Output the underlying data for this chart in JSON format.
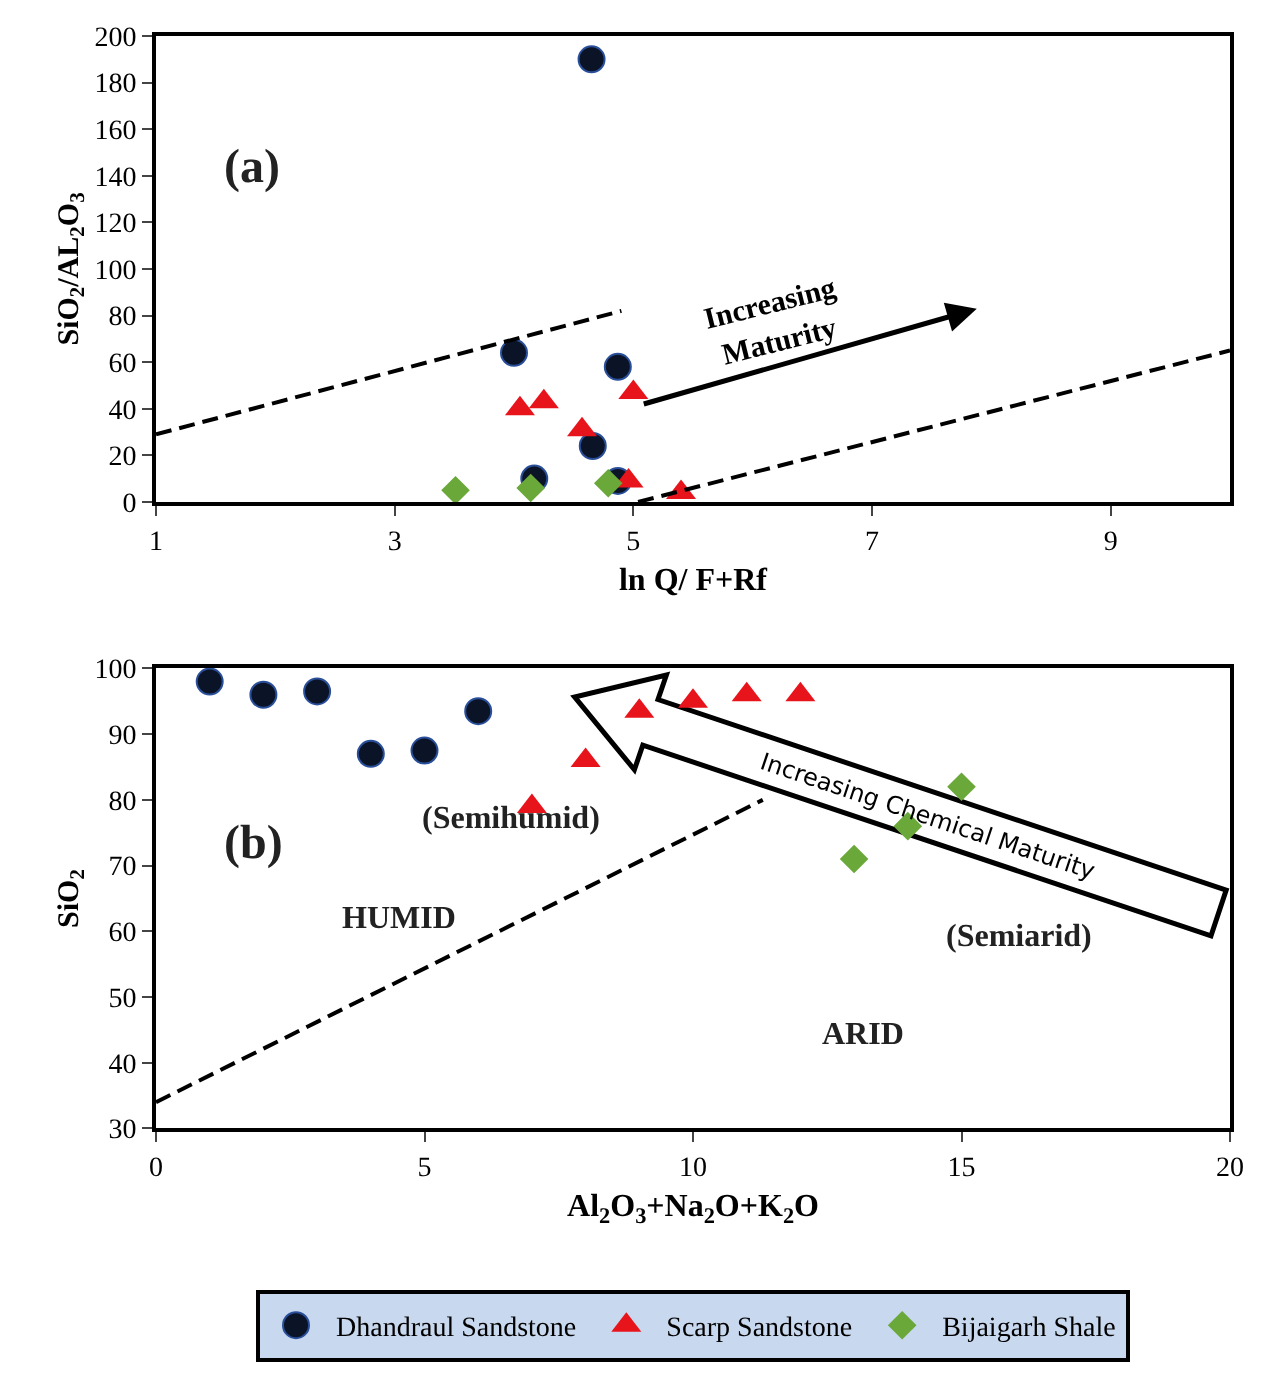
{
  "chart_data": [
    {
      "type": "scatter",
      "xlabel": "ln Q/ F+Rf",
      "ylabel": "SiO$_{2}$/AL$_{2}$O$_{3}$",
      "xlim": [
        1,
        10
      ],
      "xticks": [
        1,
        3,
        5,
        7,
        9
      ],
      "ylim": [
        0,
        200
      ],
      "yticks": [
        0,
        20,
        40,
        60,
        80,
        100,
        120,
        140,
        160,
        180,
        200
      ],
      "grid": false,
      "annotations": [
        "(a)",
        "Increasing Maturity"
      ],
      "series": [
        {
          "color": "#0b1426",
          "marker": "circle",
          "x": [
            4.65,
            4.0,
            4.87,
            4.17,
            4.66,
            4.87
          ],
          "values": [
            190,
            64,
            58,
            10,
            24,
            9
          ]
        },
        {
          "color": "#e8141c",
          "marker": "triangle",
          "x": [
            4.05,
            4.25,
            4.57,
            5.0,
            4.96,
            5.4
          ],
          "values": [
            40,
            43,
            31,
            47,
            9,
            4
          ]
        },
        {
          "color": "#6aa83a",
          "marker": "diamond",
          "x": [
            3.51,
            4.14,
            4.79
          ],
          "values": [
            5,
            6,
            8
          ]
        },
        {
          "type": "line",
          "color": "#000000",
          "marker": "none",
          "line_style": "dashed",
          "x": [
            1,
            4.9
          ],
          "values": [
            29,
            82
          ]
        },
        {
          "type": "line",
          "color": "#000000",
          "marker": "none",
          "line_style": "dashed",
          "x": [
            5.04,
            10
          ],
          "values": [
            0,
            65
          ]
        }
      ]
    },
    {
      "type": "scatter",
      "xlabel": "Al$_{2}$O$_{3}$+Na$_{2}$O+K$_{2}$O",
      "ylabel": "SiO$_{2}$",
      "xlim": [
        0,
        20
      ],
      "xticks": [
        0,
        5,
        10,
        15,
        20
      ],
      "ylim": [
        30,
        100
      ],
      "yticks": [
        30,
        40,
        50,
        60,
        70,
        80,
        90,
        100
      ],
      "grid": false,
      "legend": "bottom",
      "annotations": [
        "(b)",
        {
          "text": "Increasing Chemical Maturity",
          "x": 14.35,
          "y": 77.4
        },
        {
          "text": "(Semihumid)",
          "x": 6.6,
          "y": 77
        },
        "HUMID",
        "(Semiarid)",
        "ARID"
      ],
      "series": [
        {
          "name": "Dhandraul Sandstone",
          "color": "#0b1426",
          "marker": "circle",
          "x": [
            1,
            2,
            3,
            4,
            5,
            6
          ],
          "values": [
            98,
            96,
            96.5,
            87,
            87.5,
            93.5
          ]
        },
        {
          "name": "Scarp Sandstone",
          "color": "#e8141c",
          "marker": "triangle",
          "x": [
            7,
            8,
            9,
            10,
            11,
            12
          ],
          "values": [
            79,
            86,
            93.5,
            95,
            96,
            96
          ]
        },
        {
          "name": "Bijaigarh Shale",
          "color": "#6aa83a",
          "marker": "diamond",
          "x": [
            13,
            14,
            15
          ],
          "values": [
            71,
            76,
            82
          ]
        },
        {
          "type": "line",
          "color": "#000000",
          "marker": "none",
          "line_style": "dashed",
          "x": [
            0,
            11.3
          ],
          "values": [
            34,
            80
          ]
        }
      ]
    }
  ]
}
